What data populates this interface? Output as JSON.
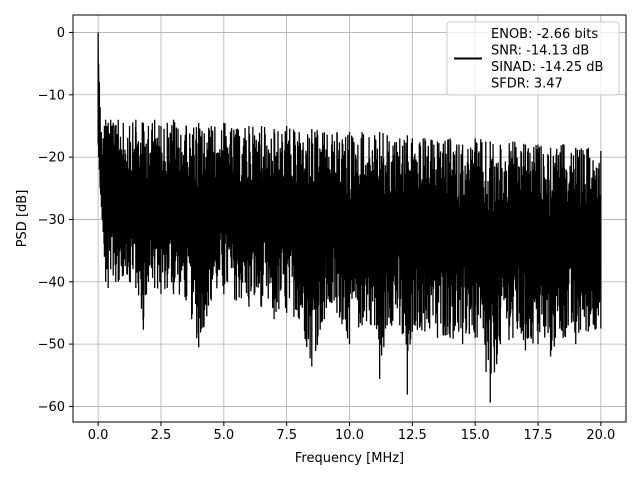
{
  "chart_data": {
    "type": "line",
    "xlabel": "Frequency [MHz]",
    "ylabel": "PSD [dB]",
    "xlim": [
      -1.0,
      21.0
    ],
    "ylim": [
      -62.5,
      2.8
    ],
    "x_ticks": [
      0.0,
      2.5,
      5.0,
      7.5,
      10.0,
      12.5,
      15.0,
      17.5,
      20.0
    ],
    "x_tick_labels": [
      "0.0",
      "2.5",
      "5.0",
      "7.5",
      "10.0",
      "12.5",
      "15.0",
      "17.5",
      "20.0"
    ],
    "y_ticks": [
      0,
      -10,
      -20,
      -30,
      -40,
      -50,
      -60
    ],
    "y_tick_labels": [
      "0",
      "−10",
      "−20",
      "−30",
      "−40",
      "−50",
      "−60"
    ],
    "grid": true,
    "legend_position": "top-right",
    "legend_lines": [
      "ENOB: -2.66 bits",
      "SNR: -14.13 dB",
      "SINAD: -14.25 dB",
      "SFDR: 3.47"
    ],
    "series": [
      {
        "color": "#000000",
        "x": [
          0.0,
          0.02,
          0.05,
          0.08,
          0.1,
          0.13,
          0.16,
          0.2,
          0.25,
          0.3,
          0.35,
          0.4,
          0.5,
          0.6,
          0.7,
          0.8,
          1.0,
          1.25,
          1.5,
          1.8,
          2.0,
          2.25,
          2.5,
          2.75,
          3.0,
          3.5,
          4.0,
          4.5,
          5.0,
          5.5,
          6.0,
          6.5,
          7.0,
          7.5,
          8.0,
          8.5,
          9.0,
          9.5,
          10.0,
          10.5,
          11.0,
          11.2,
          11.5,
          12.0,
          12.3,
          12.5,
          13.0,
          13.5,
          14.0,
          14.5,
          15.0,
          15.6,
          16.0,
          16.5,
          17.0,
          17.5,
          18.0,
          18.5,
          19.0,
          19.5,
          20.0
        ],
        "upper": [
          0.0,
          -5.0,
          -8.0,
          -12.0,
          -18.0,
          -16.0,
          -20.0,
          -17.0,
          -15.0,
          -14.0,
          -15.0,
          -14.5,
          -14.0,
          -14.5,
          -15.0,
          -14.0,
          -14.5,
          -15.0,
          -14.0,
          -14.5,
          -15.0,
          -14.0,
          -15.0,
          -14.5,
          -14.0,
          -15.0,
          -14.5,
          -15.0,
          -14.5,
          -15.5,
          -15.0,
          -15.0,
          -15.5,
          -15.0,
          -16.0,
          -15.5,
          -16.0,
          -16.0,
          -16.0,
          -16.0,
          -16.5,
          -16.0,
          -16.5,
          -17.0,
          -16.5,
          -17.0,
          -17.0,
          -17.5,
          -17.0,
          -18.0,
          -17.0,
          -17.5,
          -18.0,
          -17.5,
          -18.0,
          -18.0,
          -18.5,
          -18.0,
          -18.5,
          -18.5,
          -19.0
        ],
        "lower": [
          -18.0,
          -20.0,
          -22.0,
          -25.0,
          -26.0,
          -28.0,
          -30.0,
          -32.0,
          -36.0,
          -40.0,
          -38.0,
          -41.0,
          -38.0,
          -39.0,
          -40.0,
          -40.0,
          -39.0,
          -40.0,
          -41.0,
          -47.7,
          -40.0,
          -41.0,
          -42.0,
          -41.0,
          -42.0,
          -43.0,
          -50.5,
          -43.0,
          -42.0,
          -43.0,
          -44.0,
          -44.0,
          -46.0,
          -45.0,
          -46.0,
          -53.6,
          -46.0,
          -45.0,
          -50.0,
          -47.0,
          -47.0,
          -55.6,
          -47.0,
          -47.0,
          -58.1,
          -48.0,
          -48.0,
          -49.0,
          -49.0,
          -50.0,
          -49.0,
          -59.4,
          -50.0,
          -49.0,
          -51.0,
          -50.0,
          -52.0,
          -49.0,
          -50.0,
          -48.0,
          -47.5
        ]
      }
    ]
  }
}
